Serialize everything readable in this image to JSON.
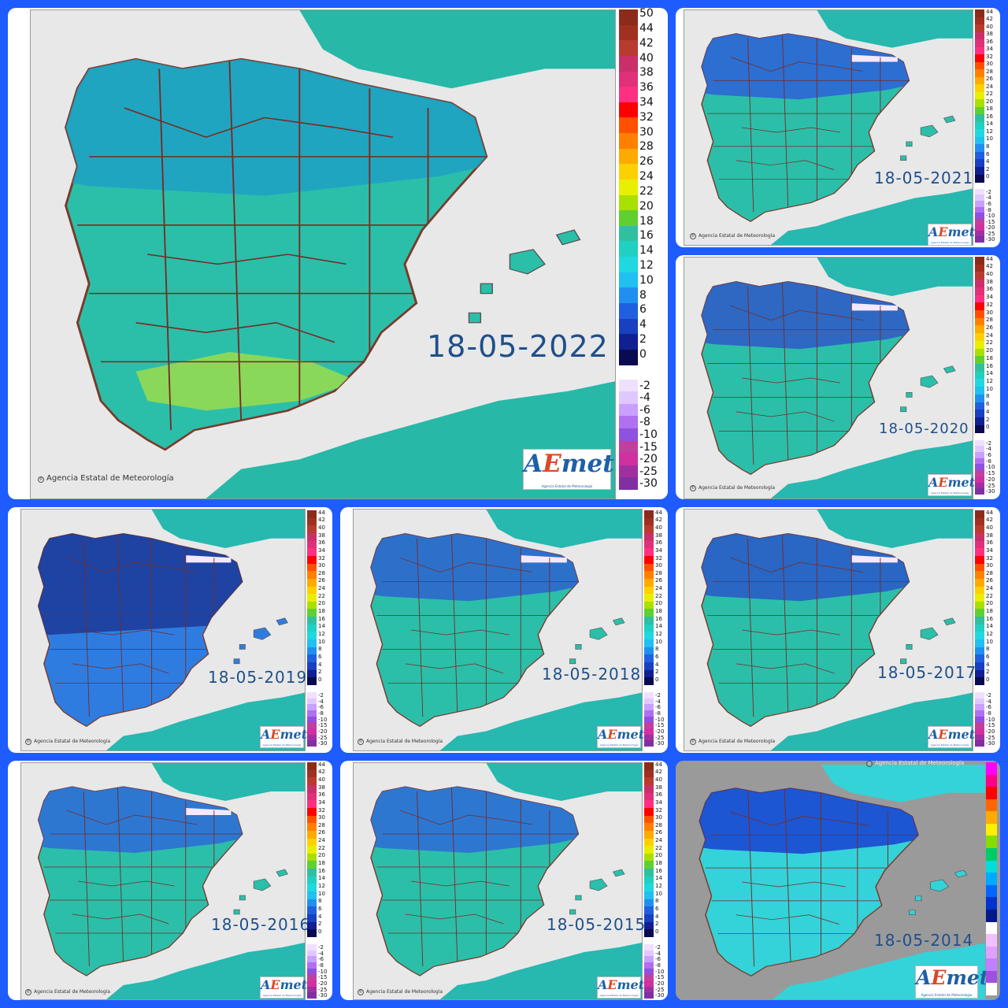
{
  "credit": "Agencia Estatal de Meteorología",
  "logo": {
    "a": "A",
    "e": "E",
    "met": "met",
    "subtitle": "Agencia Estatal de Meteorología"
  },
  "scale": {
    "positive_ticks": [
      "44",
      "42",
      "40",
      "38",
      "36",
      "34",
      "32",
      "30",
      "28",
      "26",
      "24",
      "22",
      "20",
      "18",
      "16",
      "14",
      "12",
      "10",
      "8",
      "6",
      "4",
      "2",
      "0"
    ],
    "negative_ticks": [
      "-2",
      "-4",
      "-6",
      "-8",
      "-10",
      "-15",
      "-20",
      "-25",
      "-30"
    ],
    "main_top_tick": "50",
    "colors_positive": [
      "#8b2c1a",
      "#a03020",
      "#b83b2e",
      "#c9306a",
      "#e0307a",
      "#ff3080",
      "#ff0000",
      "#ff5000",
      "#ff8000",
      "#ffaa00",
      "#ffd000",
      "#e8ef00",
      "#a8e000",
      "#60d030",
      "#30c0a0",
      "#20d0c0",
      "#20d8e0",
      "#20c0f0",
      "#2090f0",
      "#2060e0",
      "#1840c0",
      "#102090",
      "#0a0a50"
    ],
    "colors_negative": [
      "#f0e0ff",
      "#e0c8ff",
      "#c8a0ff",
      "#b070f0",
      "#9050e0",
      "#c040a0",
      "#d030a0",
      "#a030a0",
      "#8030a0"
    ],
    "color_2014": [
      "#ff00ff",
      "#ff0088",
      "#ff0000",
      "#ff6600",
      "#ffaa00",
      "#ffee00",
      "#88dd00",
      "#00cc66",
      "#00dddd",
      "#00aaff",
      "#0066ff",
      "#0033cc",
      "#001a88",
      "#ffffff",
      "#f0c0ff",
      "#e0a0ff",
      "#c080ff",
      "#a050e0",
      "#ffffff"
    ]
  },
  "maps": [
    {
      "id": "2022",
      "date": "18-05-2022",
      "fill": "#2bbfaa",
      "north": "#1fa0c4",
      "sea": "#27b8a8",
      "warm": "#8ad85a",
      "snow": false
    },
    {
      "id": "2021",
      "date": "18-05-2021",
      "fill": "#2bbfaa",
      "north": "#2e5fd8",
      "sea": "#27b8b0",
      "warm": null,
      "snow": true
    },
    {
      "id": "2020",
      "date": "18-05-2020",
      "fill": "#2bbfaa",
      "north": "#2f58c8",
      "sea": "#27b8b0",
      "warm": null,
      "snow": true
    },
    {
      "id": "2019",
      "date": "18-05-2019",
      "fill": "#2f7ce0",
      "north": "#1b3a98",
      "sea": "#27b8b0",
      "warm": null,
      "snow": true
    },
    {
      "id": "2018",
      "date": "18-05-2018",
      "fill": "#2bbfaa",
      "north": "#2e62d0",
      "sea": "#27b8b0",
      "warm": null,
      "snow": true
    },
    {
      "id": "2017",
      "date": "18-05-2017",
      "fill": "#2bbfaa",
      "north": "#2a56c8",
      "sea": "#27b8b0",
      "warm": null,
      "snow": true
    },
    {
      "id": "2016",
      "date": "18-05-2016",
      "fill": "#2bbfaa",
      "north": "#2f6ad8",
      "sea": "#27b8b0",
      "warm": null,
      "snow": true
    },
    {
      "id": "2015",
      "date": "18-05-2015",
      "fill": "#2bbfaa",
      "north": "#2f6ad8",
      "sea": "#27b8b0",
      "warm": null,
      "snow": false
    },
    {
      "id": "2014",
      "date": "18-05-2014",
      "fill": "#33d3d9",
      "north": "#1a3fd0",
      "sea": "#33d3d9",
      "warm": null,
      "snow": false
    }
  ]
}
